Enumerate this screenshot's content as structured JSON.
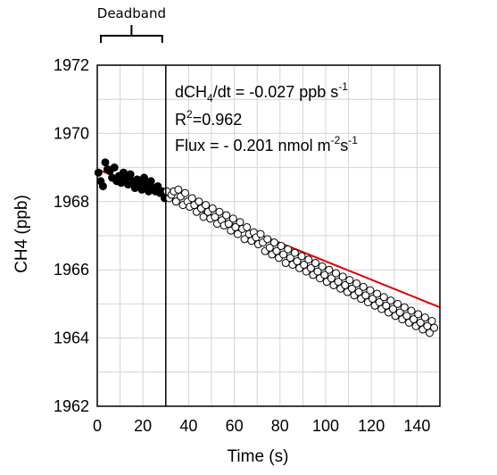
{
  "chart_data": {
    "type": "scatter",
    "xlabel": "Time (s)",
    "ylabel": "CH4 (ppb)",
    "xlim": [
      0,
      150
    ],
    "ylim": [
      1962,
      1972
    ],
    "x_ticks": [
      0,
      20,
      40,
      60,
      80,
      100,
      120,
      140
    ],
    "y_ticks": [
      1962,
      1964,
      1966,
      1968,
      1970,
      1972
    ],
    "grid": true,
    "deadband": {
      "label": "Deadband",
      "start": 0,
      "end": 30
    },
    "annotations": {
      "slope": {
        "prefix": "dCH",
        "sub": "4",
        "suffix": "/dt = -0.027 ppb s",
        "sup": "-1"
      },
      "r2": {
        "prefix": "R",
        "sup": "2",
        "suffix": "=0.962"
      },
      "flux": {
        "prefix": "Flux = - 0.201 nmol m",
        "sup1": "-2",
        "mid": "s",
        "sup2": "-1"
      }
    },
    "fit_line": {
      "color": "#e00000",
      "x": [
        0,
        150
      ],
      "y": [
        1968.95,
        1964.9
      ]
    },
    "series": [
      {
        "marker": "filled",
        "color": "#000000",
        "x": [
          0.5,
          1.5,
          2.5,
          3.5,
          4.5,
          5.5,
          6.5,
          7.5,
          8.5,
          9.5,
          10.5,
          11.5,
          12.5,
          13.5,
          14.5,
          15.5,
          16.5,
          17.5,
          18.5,
          19.5,
          20.5,
          21.5,
          22.5,
          23.5,
          24.5,
          25.5,
          26.5,
          27.5,
          28.5,
          29.5
        ],
        "y": [
          1968.85,
          1968.6,
          1968.45,
          1969.15,
          1968.95,
          1968.9,
          1968.7,
          1969.0,
          1968.6,
          1968.75,
          1968.55,
          1968.85,
          1968.7,
          1968.5,
          1968.8,
          1968.6,
          1968.4,
          1968.65,
          1968.55,
          1968.35,
          1968.7,
          1968.5,
          1968.3,
          1968.6,
          1968.4,
          1968.3,
          1968.45,
          1968.25,
          1968.3,
          1968.1
        ]
      },
      {
        "marker": "open",
        "color": "#000000",
        "x": [
          30.5,
          31.5,
          32.5,
          33.5,
          34.5,
          35.5,
          36.5,
          37.5,
          38.5,
          39.5,
          40.5,
          41.5,
          42.5,
          43.5,
          44.5,
          45.5,
          46.5,
          47.5,
          48.5,
          49.5,
          50.5,
          51.5,
          52.5,
          53.5,
          54.5,
          55.5,
          56.5,
          57.5,
          58.5,
          59.5,
          60.5,
          61.5,
          62.5,
          63.5,
          64.5,
          65.5,
          66.5,
          67.5,
          68.5,
          69.5,
          70.5,
          71.5,
          72.5,
          73.5,
          74.5,
          75.5,
          76.5,
          77.5,
          78.5,
          79.5,
          80.5,
          81.5,
          82.5,
          83.5,
          84.5,
          85.5,
          86.5,
          87.5,
          88.5,
          89.5,
          90.5,
          91.5,
          92.5,
          93.5,
          94.5,
          95.5,
          96.5,
          97.5,
          98.5,
          99.5,
          100.5,
          101.5,
          102.5,
          103.5,
          104.5,
          105.5,
          106.5,
          107.5,
          108.5,
          109.5,
          110.5,
          111.5,
          112.5,
          113.5,
          114.5,
          115.5,
          116.5,
          117.5,
          118.5,
          119.5,
          120.5,
          121.5,
          122.5,
          123.5,
          124.5,
          125.5,
          126.5,
          127.5,
          128.5,
          129.5,
          130.5,
          131.5,
          132.5,
          133.5,
          134.5,
          135.5,
          136.5,
          137.5,
          138.5,
          139.5,
          140.5,
          141.5,
          142.5,
          143.5,
          144.5,
          145.5,
          146.5,
          147.5
        ],
        "y": [
          1968.3,
          1968.1,
          1968.2,
          1968.3,
          1968.0,
          1968.35,
          1968.15,
          1967.9,
          1968.25,
          1968.0,
          1967.85,
          1968.1,
          1967.9,
          1967.7,
          1968.0,
          1967.8,
          1967.55,
          1967.9,
          1967.7,
          1967.5,
          1967.8,
          1967.55,
          1967.35,
          1967.7,
          1967.45,
          1967.3,
          1967.6,
          1967.35,
          1967.15,
          1967.5,
          1967.25,
          1967.05,
          1967.4,
          1967.2,
          1966.9,
          1967.25,
          1967.05,
          1966.85,
          1967.1,
          1966.95,
          1966.75,
          1967.05,
          1966.8,
          1966.55,
          1966.9,
          1966.65,
          1966.45,
          1966.8,
          1966.55,
          1966.35,
          1966.7,
          1966.45,
          1966.2,
          1966.6,
          1966.35,
          1966.15,
          1966.5,
          1966.25,
          1966.05,
          1966.4,
          1966.15,
          1965.95,
          1966.3,
          1966.05,
          1965.85,
          1966.2,
          1965.95,
          1965.75,
          1966.1,
          1965.85,
          1965.65,
          1966.0,
          1965.75,
          1965.55,
          1965.9,
          1965.65,
          1965.45,
          1965.8,
          1965.55,
          1965.35,
          1965.7,
          1965.45,
          1965.25,
          1965.6,
          1965.35,
          1965.15,
          1965.5,
          1965.25,
          1965.05,
          1965.4,
          1965.15,
          1964.95,
          1965.3,
          1965.05,
          1964.85,
          1965.2,
          1964.95,
          1964.75,
          1965.1,
          1964.85,
          1964.65,
          1965.0,
          1964.75,
          1964.55,
          1964.9,
          1964.65,
          1964.45,
          1964.8,
          1964.55,
          1964.35,
          1964.7,
          1964.45,
          1964.25,
          1964.6,
          1964.35,
          1964.15,
          1964.5,
          1964.3
        ]
      }
    ]
  }
}
